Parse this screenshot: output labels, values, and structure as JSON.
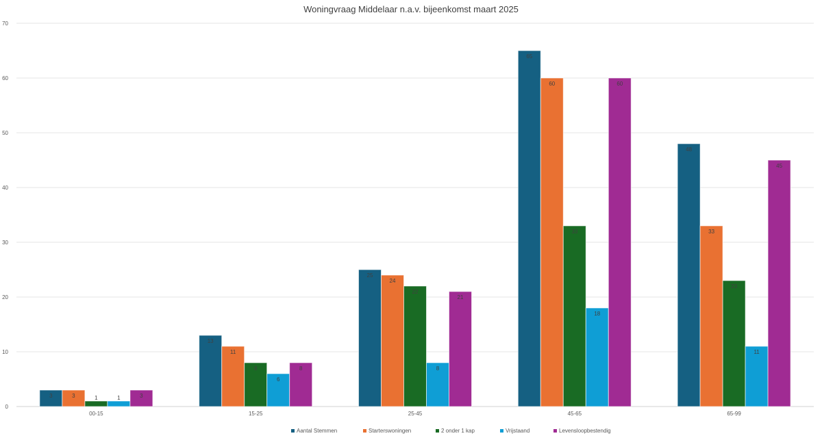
{
  "chart_data": {
    "type": "bar",
    "title": "Woningvraag Middelaar n.a.v. bijeenkomst maart 2025",
    "xlabel": "",
    "ylabel": "",
    "ylim": [
      0,
      70
    ],
    "yticks": [
      0,
      10,
      20,
      30,
      40,
      50,
      60,
      70
    ],
    "grid": true,
    "legend_position": "bottom",
    "categories": [
      "00-15",
      "15-25",
      "25-45",
      "45-65",
      "65-99"
    ],
    "series": [
      {
        "name": "Aantal Stemmen",
        "color": "#156082",
        "values": [
          3,
          13,
          25,
          65,
          48
        ]
      },
      {
        "name": "Starterswoningen",
        "color": "#E97132",
        "values": [
          3,
          11,
          24,
          60,
          33
        ]
      },
      {
        "name": "2 onder 1 kap",
        "color": "#196B24",
        "values": [
          1,
          8,
          22,
          33,
          23
        ]
      },
      {
        "name": "Vrijstaand",
        "color": "#0F9ED5",
        "values": [
          1,
          6,
          8,
          18,
          11
        ]
      },
      {
        "name": "Levensloopbestendig",
        "color": "#A02B93",
        "values": [
          3,
          8,
          21,
          60,
          45
        ]
      }
    ]
  }
}
